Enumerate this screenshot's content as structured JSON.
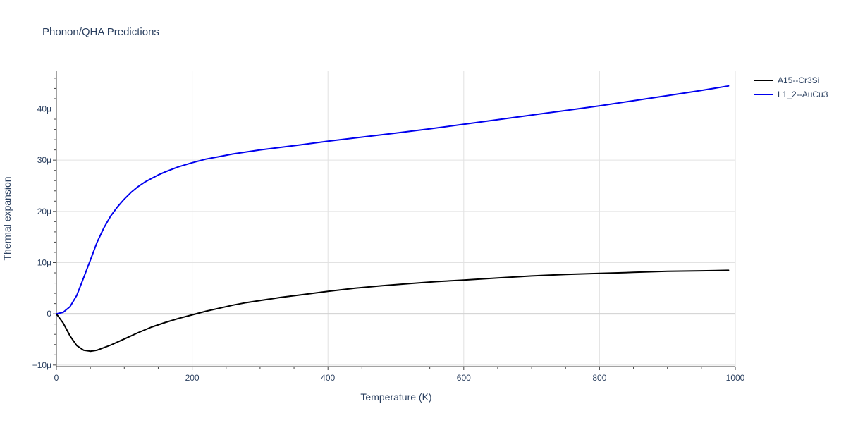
{
  "chart_data": {
    "type": "line",
    "title": "Phonon/QHA Predictions",
    "xlabel": "Temperature (K)",
    "ylabel": "Thermal expansion",
    "xlim": [
      0,
      1000
    ],
    "ylim": [
      -10.3,
      47.5
    ],
    "x_ticks": [
      0,
      200,
      400,
      600,
      800,
      1000
    ],
    "x_tick_labels": [
      "0",
      "200",
      "400",
      "600",
      "800",
      "1000"
    ],
    "y_ticks": [
      -10,
      0,
      10,
      20,
      30,
      40
    ],
    "y_tick_labels": [
      "−10μ",
      "0",
      "10μ",
      "20μ",
      "30μ",
      "40μ"
    ],
    "y_unit": "μ (×1e-6)",
    "grid": true,
    "legend_position": "top-right",
    "series": [
      {
        "name": "A15--Cr3Si",
        "color": "#000000",
        "x": [
          0,
          10,
          20,
          30,
          40,
          50,
          60,
          80,
          100,
          120,
          140,
          160,
          180,
          200,
          220,
          240,
          260,
          280,
          300,
          330,
          360,
          400,
          440,
          480,
          520,
          560,
          600,
          650,
          700,
          750,
          800,
          850,
          900,
          950,
          990
        ],
        "y": [
          0,
          -1.8,
          -4.3,
          -6.2,
          -7.1,
          -7.3,
          -7.1,
          -6.1,
          -4.9,
          -3.7,
          -2.6,
          -1.7,
          -0.9,
          -0.2,
          0.5,
          1.1,
          1.7,
          2.2,
          2.6,
          3.2,
          3.7,
          4.4,
          5.0,
          5.5,
          5.9,
          6.3,
          6.6,
          7.0,
          7.4,
          7.7,
          7.9,
          8.1,
          8.3,
          8.4,
          8.5
        ]
      },
      {
        "name": "L1_2--AuCu3",
        "color": "#0000ee",
        "x": [
          0,
          10,
          20,
          30,
          40,
          50,
          60,
          70,
          80,
          90,
          100,
          110,
          120,
          130,
          140,
          150,
          160,
          170,
          180,
          190,
          200,
          220,
          240,
          260,
          280,
          300,
          330,
          360,
          400,
          450,
          500,
          550,
          600,
          650,
          700,
          750,
          800,
          850,
          900,
          950,
          990
        ],
        "y": [
          0,
          0.3,
          1.4,
          3.6,
          7.0,
          10.5,
          14.0,
          16.8,
          19.1,
          20.9,
          22.4,
          23.7,
          24.8,
          25.7,
          26.4,
          27.1,
          27.7,
          28.2,
          28.7,
          29.1,
          29.5,
          30.2,
          30.7,
          31.2,
          31.6,
          32.0,
          32.5,
          33.0,
          33.7,
          34.5,
          35.3,
          36.1,
          37.0,
          37.9,
          38.8,
          39.7,
          40.6,
          41.6,
          42.6,
          43.6,
          44.5
        ]
      }
    ]
  }
}
